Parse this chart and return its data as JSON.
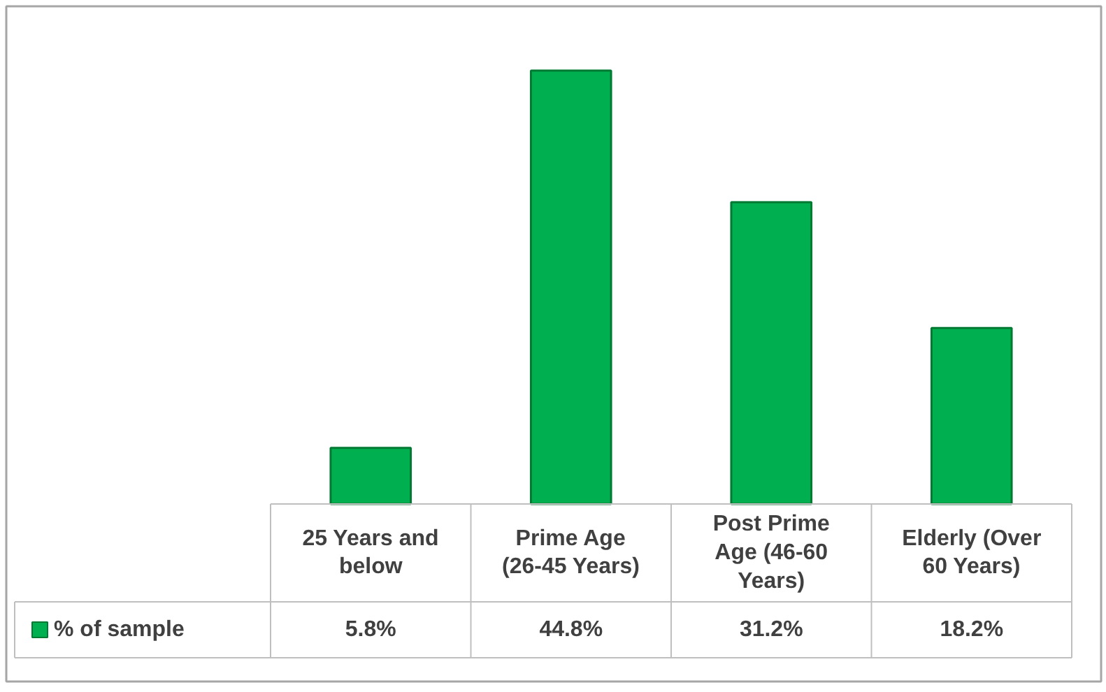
{
  "chart_data": {
    "type": "bar",
    "categories": [
      "25 Years and below",
      "Prime Age (26-45 Years)",
      "Post Prime Age (46-60 Years)",
      "Elderly (Over 60 Years)"
    ],
    "series": [
      {
        "name": "% of sample",
        "color": "#00b050",
        "values": [
          5.8,
          44.8,
          31.2,
          18.2
        ],
        "value_labels": [
          "5.8%",
          "44.8%",
          "31.2%",
          "18.2%"
        ]
      }
    ],
    "legend": "bottom left",
    "grid": false
  }
}
